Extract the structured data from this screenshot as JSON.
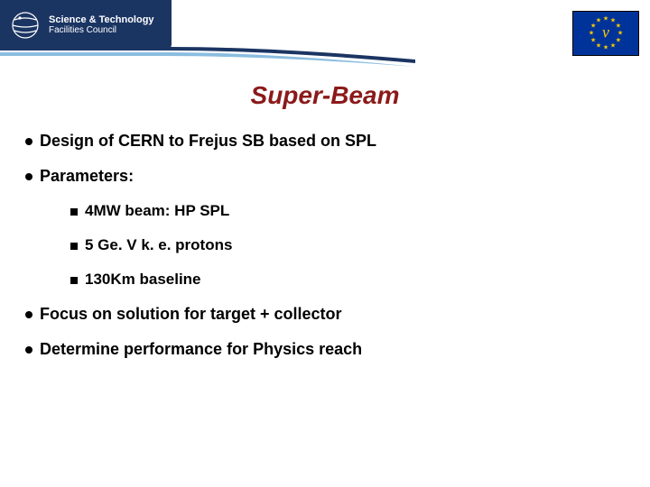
{
  "logo": {
    "line1": "Science & Technology",
    "line2": "Facilities Council"
  },
  "eu": {
    "symbol": "ν",
    "star_color": "#ffcc00",
    "bg_color": "#003399",
    "star_positions": [
      {
        "angle": 0
      },
      {
        "angle": 30
      },
      {
        "angle": 60
      },
      {
        "angle": 90
      },
      {
        "angle": 120
      },
      {
        "angle": 150
      },
      {
        "angle": 180
      },
      {
        "angle": 210
      },
      {
        "angle": 240
      },
      {
        "angle": 270
      },
      {
        "angle": 300
      },
      {
        "angle": 330
      }
    ]
  },
  "title": {
    "text": "Super-Beam",
    "color": "#8b1a1a",
    "fontsize": 28
  },
  "bullets": [
    {
      "text": "Design of CERN to Frejus SB based on SPL",
      "sub": []
    },
    {
      "text": "Parameters:",
      "sub": [
        "4MW beam: HP SPL",
        "5 Ge. V k. e. protons",
        "130Km baseline"
      ]
    },
    {
      "text": "Focus on solution for target + collector",
      "sub": []
    },
    {
      "text": "Determine performance for Physics reach",
      "sub": []
    }
  ],
  "colors": {
    "stfc_bg": "#1b3563",
    "text": "#000000",
    "page_bg": "#ffffff"
  }
}
